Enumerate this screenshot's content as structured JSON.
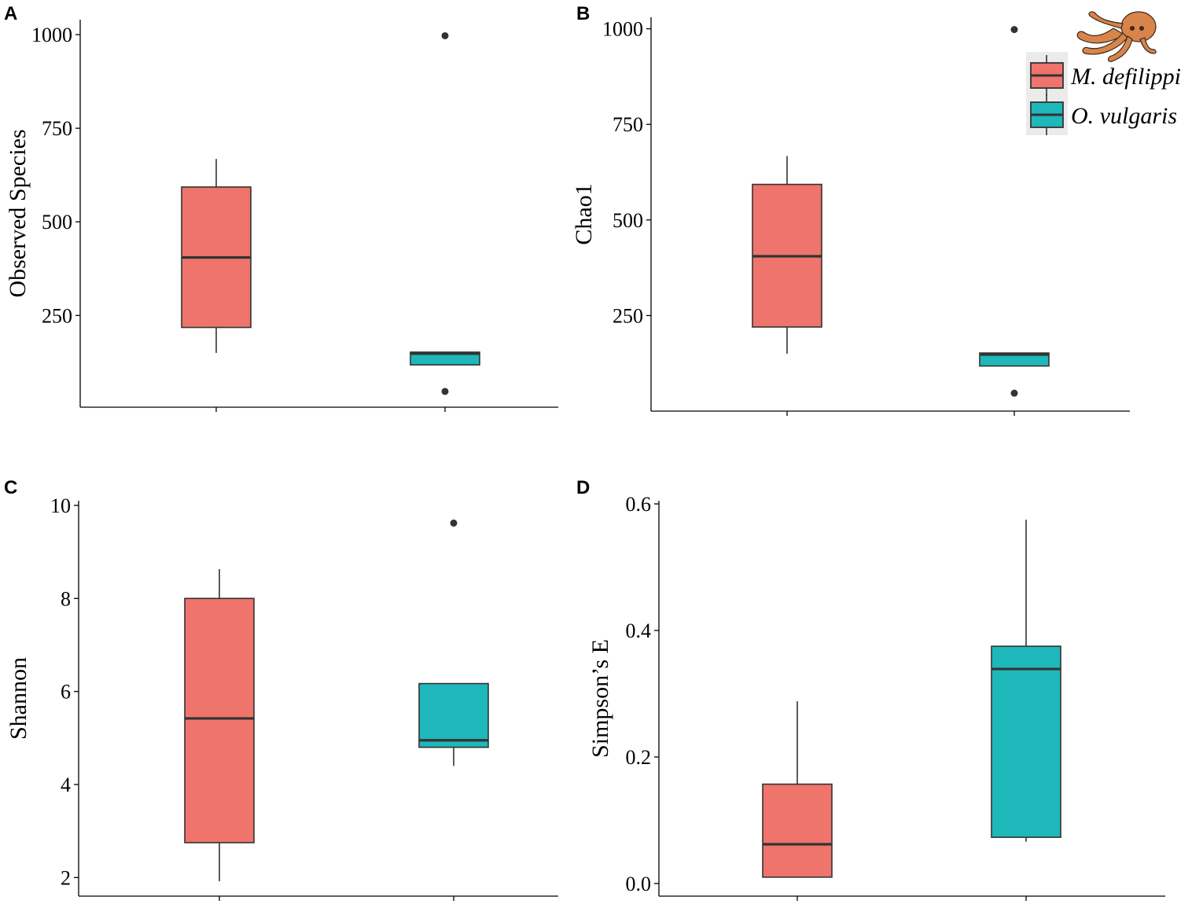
{
  "legend": {
    "placement": "top-right",
    "entries": [
      {
        "label": "M. defilippi",
        "color": "#EE746C"
      },
      {
        "label": "O. vulgaris",
        "color": "#1EB7BA"
      }
    ],
    "icon": "octopus-icon",
    "icon_color": "#D9844A"
  },
  "chart_data": [
    {
      "type": "box",
      "panel": "A",
      "ylabel": "Observed Species",
      "ylim": [
        5,
        1040
      ],
      "yticks": [
        250,
        500,
        750,
        1000
      ],
      "x_ticks_labeled": false,
      "grid": false,
      "boxes": [
        {
          "group": "M. defilippi",
          "color": "#EE746C",
          "whisker_low": 150,
          "q1": 218,
          "median": 405,
          "q3": 593,
          "whisker_high": 668,
          "outliers": []
        },
        {
          "group": "O. vulgaris",
          "color": "#1EB7BA",
          "whisker_low": 118,
          "q1": 118,
          "median": 148,
          "q3": 152,
          "whisker_high": 152,
          "outliers": [
            47,
            997
          ]
        }
      ]
    },
    {
      "type": "box",
      "panel": "B",
      "ylabel": "Chao1",
      "ylim": [
        0,
        1030
      ],
      "yticks": [
        250,
        500,
        750,
        1000
      ],
      "x_ticks_labeled": false,
      "grid": false,
      "boxes": [
        {
          "group": "M. defilippi",
          "color": "#EE746C",
          "whisker_low": 150,
          "q1": 220,
          "median": 405,
          "q3": 593,
          "whisker_high": 667,
          "outliers": []
        },
        {
          "group": "O. vulgaris",
          "color": "#1EB7BA",
          "whisker_low": 118,
          "q1": 118,
          "median": 148,
          "q3": 152,
          "whisker_high": 152,
          "outliers": [
            47,
            998
          ]
        }
      ]
    },
    {
      "type": "box",
      "panel": "C",
      "ylabel": "Shannon",
      "ylim": [
        1.6,
        10.1
      ],
      "yticks": [
        2,
        4,
        6,
        8,
        10
      ],
      "x_ticks_labeled": false,
      "grid": false,
      "boxes": [
        {
          "group": "M. defilippi",
          "color": "#EE746C",
          "whisker_low": 1.92,
          "q1": 2.75,
          "median": 5.42,
          "q3": 8.0,
          "whisker_high": 8.63,
          "outliers": []
        },
        {
          "group": "O. vulgaris",
          "color": "#1EB7BA",
          "whisker_low": 4.4,
          "q1": 4.8,
          "median": 4.95,
          "q3": 6.17,
          "whisker_high": 6.17,
          "outliers": [
            9.62
          ]
        }
      ]
    },
    {
      "type": "box",
      "panel": "D",
      "ylabel": "Simpson’s E",
      "ylim": [
        -0.02,
        0.605
      ],
      "yticks": [
        0.0,
        0.2,
        0.4,
        0.6
      ],
      "ytick_labels": [
        "0.0",
        "0.2",
        "0.4",
        "0.6"
      ],
      "x_ticks_labeled": false,
      "grid": false,
      "boxes": [
        {
          "group": "M. defilippi",
          "color": "#EE746C",
          "whisker_low": 0.01,
          "q1": 0.01,
          "median": 0.062,
          "q3": 0.157,
          "whisker_high": 0.288,
          "outliers": []
        },
        {
          "group": "O. vulgaris",
          "color": "#1EB7BA",
          "whisker_low": 0.066,
          "q1": 0.073,
          "median": 0.339,
          "q3": 0.375,
          "whisker_high": 0.575,
          "outliers": []
        }
      ]
    }
  ]
}
